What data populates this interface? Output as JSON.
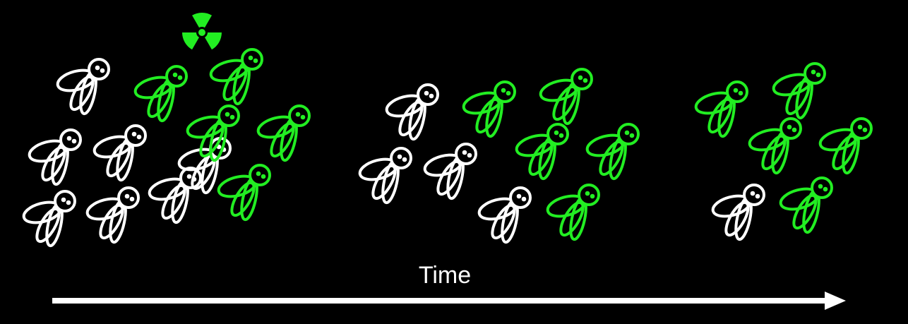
{
  "diagram": {
    "time_label": "Time",
    "colors": {
      "background": "#000000",
      "normal_fly": "#ffffff",
      "mutant_fly": "#22ee22",
      "arrow": "#ffffff",
      "radiation_symbol": "#22ee22"
    },
    "icons": {
      "fly": "fly-icon",
      "radiation": "radiation-icon",
      "arrow": "time-arrow"
    },
    "populations": [
      {
        "name": "generation-1",
        "normal_count": 7,
        "mutant_count": 5
      },
      {
        "name": "generation-2",
        "normal_count": 4,
        "mutant_count": 5
      },
      {
        "name": "generation-3",
        "normal_count": 1,
        "mutant_count": 5
      }
    ]
  }
}
